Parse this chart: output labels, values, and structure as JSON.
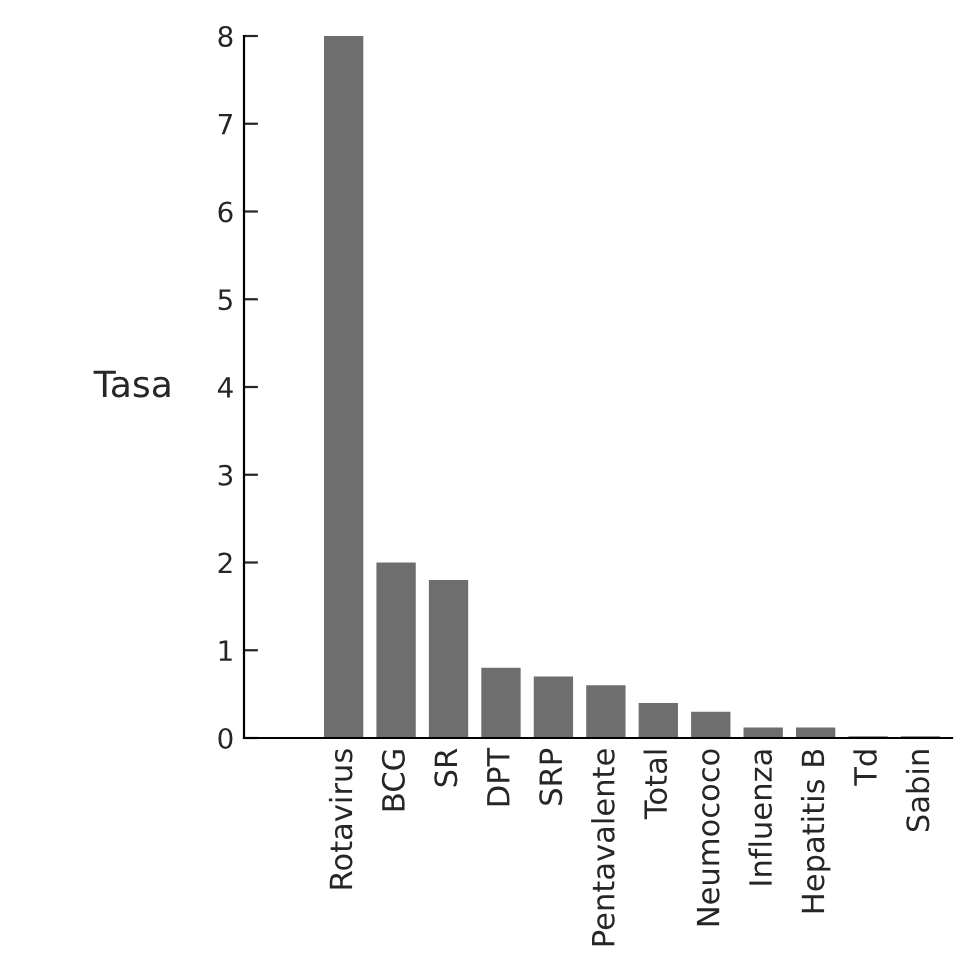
{
  "chart_data": {
    "type": "bar",
    "ylabel": "Tasa",
    "categories": [
      "Rotavirus",
      "BCG",
      "SR",
      "DPT",
      "SRP",
      "Pentavalente",
      "Total",
      "Neumococo",
      "Influenza",
      "Hepatitis B",
      "Td",
      "Sabin"
    ],
    "values": [
      8,
      2.0,
      1.8,
      0.8,
      0.7,
      0.6,
      0.4,
      0.3,
      0.12,
      0.12,
      0.02,
      0.02
    ],
    "color": "#6e6e6e",
    "ylim": [
      0,
      8
    ],
    "yticks": [
      0,
      1,
      2,
      3,
      4,
      5,
      6,
      7,
      8
    ],
    "grid": false,
    "legend": false
  }
}
